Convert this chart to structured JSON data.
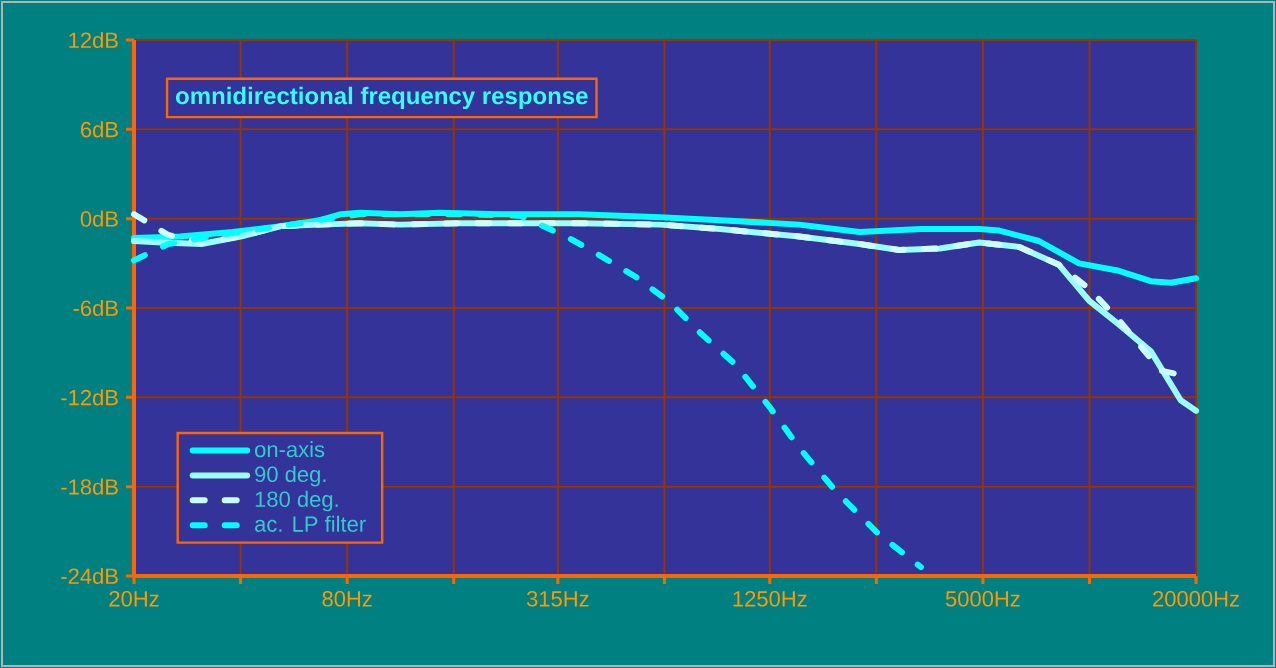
{
  "chart_data": {
    "type": "line",
    "title": "omnidirectional frequency response",
    "xlim": [
      20,
      20000
    ],
    "ylim": [
      -24,
      12
    ],
    "log": "x",
    "grid": true,
    "legend": "bottom left",
    "xticks": [
      {
        "value": 20,
        "label": "20Hz"
      },
      {
        "value": 40,
        "label": null
      },
      {
        "value": 80,
        "label": "80Hz"
      },
      {
        "value": 160,
        "label": null
      },
      {
        "value": 315,
        "label": "315Hz"
      },
      {
        "value": 630,
        "label": null
      },
      {
        "value": 1250,
        "label": "1250Hz"
      },
      {
        "value": 2500,
        "label": null
      },
      {
        "value": 5000,
        "label": "5000Hz"
      },
      {
        "value": 10000,
        "label": null
      },
      {
        "value": 20000,
        "label": "20000Hz"
      }
    ],
    "yticks": [
      {
        "value": -24,
        "label": "-24dB"
      },
      {
        "value": -18,
        "label": "-18dB"
      },
      {
        "value": -12,
        "label": "-12dB"
      },
      {
        "value": -6,
        "label": "-6dB"
      },
      {
        "value": 0,
        "label": "0dB"
      },
      {
        "value": 6,
        "label": "6dB"
      },
      {
        "value": 12,
        "label": "12dB"
      }
    ],
    "series": [
      {
        "name": "on-axis",
        "color": "#00ffff",
        "line_style": "solid",
        "x": [
          20,
          27,
          38,
          52,
          67,
          77,
          87,
          113,
          146,
          216,
          362,
          612,
          906,
          1515,
          2240,
          3340,
          4880,
          5560,
          7200,
          9340,
          12100,
          14900,
          17000,
          20000
        ],
        "values": [
          -1.3,
          -1.2,
          -0.9,
          -0.5,
          -0.1,
          0.3,
          0.4,
          0.3,
          0.4,
          0.3,
          0.3,
          0.1,
          -0.1,
          -0.4,
          -0.9,
          -0.7,
          -0.7,
          -0.8,
          -1.5,
          -3.0,
          -3.5,
          -4.2,
          -4.3,
          -4.0
        ]
      },
      {
        "name": "90 deg.",
        "color": "#99ffff",
        "line_style": "solid",
        "x": [
          20,
          24,
          31,
          40,
          52,
          67,
          87,
          113,
          166,
          246,
          362,
          612,
          906,
          1515,
          2240,
          2900,
          3780,
          4880,
          6330,
          8200,
          9970,
          12100,
          14900,
          18100,
          20000
        ],
        "values": [
          -1.5,
          -1.6,
          -1.7,
          -1.2,
          -0.5,
          -0.4,
          -0.3,
          -0.4,
          -0.3,
          -0.3,
          -0.3,
          -0.4,
          -0.7,
          -1.2,
          -1.7,
          -2.1,
          -2.0,
          -1.6,
          -1.9,
          -3.1,
          -5.5,
          -7.1,
          -8.9,
          -12.2,
          -12.9
        ]
      },
      {
        "name": "180 deg.",
        "color": "#ccffff",
        "line_style": "dashed",
        "x": [
          20,
          25,
          31,
          40,
          52,
          67,
          87,
          113,
          166,
          246,
          362,
          612,
          906,
          1515,
          2240,
          2900,
          3780,
          4880,
          6330,
          8200,
          9970,
          12100,
          15900,
          18100
        ],
        "values": [
          0.3,
          -1.1,
          -1.6,
          -1.2,
          -0.5,
          -0.4,
          -0.3,
          -0.4,
          -0.3,
          -0.3,
          -0.3,
          -0.4,
          -0.7,
          -1.2,
          -1.7,
          -2.1,
          -2.0,
          -1.6,
          -1.9,
          -3.1,
          -4.7,
          -6.8,
          -10.2,
          -10.5
        ]
      },
      {
        "name": "ac. LP filter",
        "color": "#00ffff",
        "line_style": "dashed",
        "x": [
          20,
          25,
          35,
          52,
          67,
          87,
          113,
          166,
          246,
          333,
          409,
          522,
          652,
          798,
          1000,
          1244,
          1515,
          1920,
          2540,
          3340
        ],
        "values": [
          -2.8,
          -1.7,
          -1.1,
          -0.5,
          -0.1,
          0.3,
          0.3,
          0.3,
          0.2,
          -1.2,
          -2.4,
          -3.9,
          -5.6,
          -7.7,
          -9.8,
          -12.6,
          -15.4,
          -18.3,
          -21.2,
          -23.4
        ]
      }
    ]
  }
}
